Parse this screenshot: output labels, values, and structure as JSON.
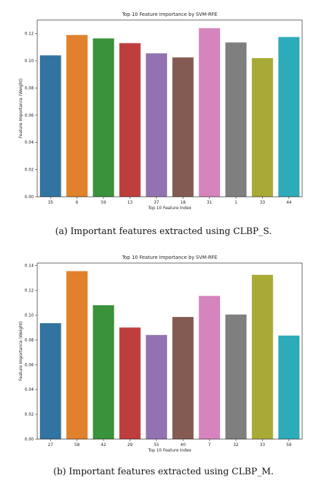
{
  "chart_data": [
    {
      "type": "bar",
      "title": "Top 10 Feature Importance by SVM-RFE",
      "xlabel": "Top 10 Feature Index",
      "ylabel": "Feature Importance (Weight)",
      "categories": [
        "35",
        "6",
        "59",
        "13",
        "37",
        "18",
        "31",
        "1",
        "33",
        "44"
      ],
      "values": [
        0.104,
        0.119,
        0.1165,
        0.113,
        0.1055,
        0.1025,
        0.124,
        0.1135,
        0.102,
        0.1175
      ],
      "colors": [
        "#3274a1",
        "#e1812c",
        "#3a923a",
        "#c03d3e",
        "#9372b2",
        "#845b53",
        "#d684bd",
        "#7f7f7f",
        "#a9aa35",
        "#2eabb8"
      ],
      "ylim": [
        0,
        0.13
      ],
      "yticks": [
        "0.00",
        "0.02",
        "0.04",
        "0.06",
        "0.08",
        "0.10",
        "0.12"
      ],
      "grid": false,
      "legend": "none",
      "caption": "(a) Important features extracted using CLBP_S."
    },
    {
      "type": "bar",
      "title": "Top 10 Feature Importance by SVM-RFE",
      "xlabel": "Top 10 Feature Index",
      "ylabel": "Feature Importance (Weight)",
      "categories": [
        "27",
        "58",
        "42",
        "29",
        "55",
        "40",
        "7",
        "32",
        "33",
        "59"
      ],
      "values": [
        0.0935,
        0.1355,
        0.108,
        0.09,
        0.084,
        0.0985,
        0.1155,
        0.1005,
        0.1325,
        0.0835
      ],
      "colors": [
        "#3274a1",
        "#e1812c",
        "#3a923a",
        "#c03d3e",
        "#9372b2",
        "#845b53",
        "#d684bd",
        "#7f7f7f",
        "#a9aa35",
        "#2eabb8"
      ],
      "ylim": [
        0,
        0.142
      ],
      "yticks": [
        "0.00",
        "0.02",
        "0.04",
        "0.06",
        "0.08",
        "0.10",
        "0.12",
        "0.14"
      ],
      "grid": false,
      "legend": "none",
      "caption": "(b) Important features extracted using CLBP_M."
    }
  ]
}
